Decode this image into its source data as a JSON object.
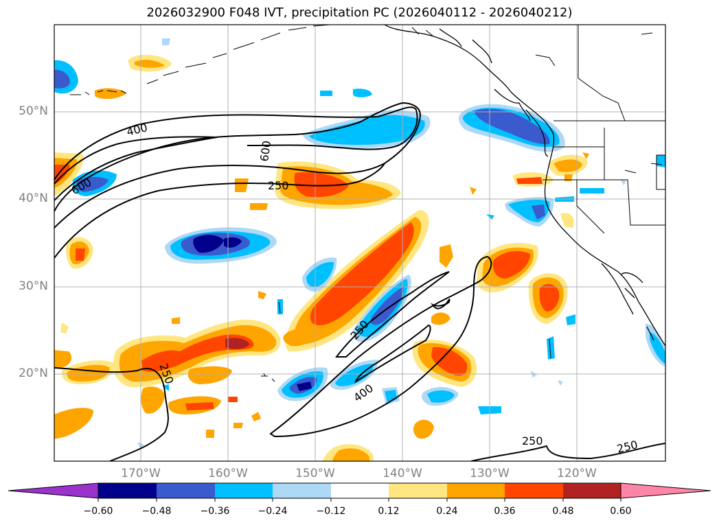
{
  "title": "2026032900 F048 IVT, precipitation PC (2026040112 - 2026040212)",
  "map": {
    "lat_labels": [
      "50°N",
      "40°N",
      "30°N",
      "20°N"
    ],
    "lon_labels": [
      "170°W",
      "160°W",
      "150°W",
      "140°W",
      "130°W",
      "120°W"
    ],
    "contour_labels": [
      "400",
      "600",
      "600",
      "250",
      "250",
      "250",
      "400",
      "250",
      "250"
    ],
    "contour_levels": [
      250,
      400,
      600
    ],
    "colors": {
      "neg_060": "#9933cc",
      "neg_048": "#00008b",
      "neg_036": "#3a5bcd",
      "neg_024": "#00bfff",
      "neg_012": "#add8f6",
      "pos_012": "#ffe680",
      "pos_024": "#ffa500",
      "pos_036": "#ff4500",
      "pos_048": "#b22222",
      "pos_060": "#ff85a8"
    }
  },
  "colorbar": {
    "ticks": [
      "−0.60",
      "−0.48",
      "−0.36",
      "−0.24",
      "−0.12",
      "0.12",
      "0.24",
      "0.36",
      "0.48",
      "0.60"
    ],
    "colors": [
      "#9933cc",
      "#00008b",
      "#3a5bcd",
      "#00bfff",
      "#add8f6",
      "#ffffff",
      "#ffe680",
      "#ffa500",
      "#ff4500",
      "#b22222",
      "#ff85a8"
    ]
  }
}
